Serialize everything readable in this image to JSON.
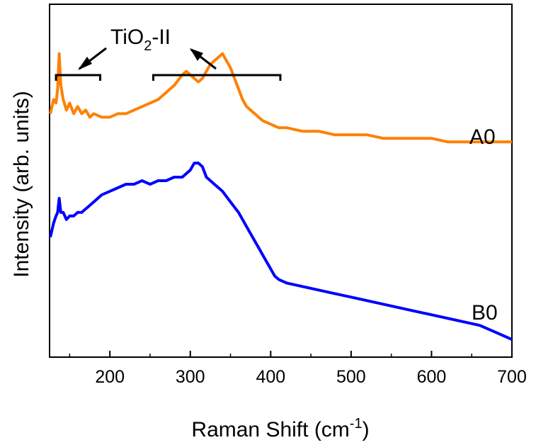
{
  "chart_data": {
    "type": "line",
    "xlabel": "Raman Shift (cm",
    "xlabel_sup": "-1",
    "xlabel_end": ")",
    "ylabel": "Intensity (arb. units)",
    "xlim": [
      125,
      700
    ],
    "xticks": [
      200,
      300,
      400,
      500,
      600,
      700
    ],
    "y_ticks_shown": false,
    "grid": false,
    "annotation": {
      "text_main": "TiO",
      "text_sub": "2",
      "text_end": "-II",
      "brackets": [
        {
          "from": 133,
          "to": 188
        },
        {
          "from": 254,
          "to": 412
        }
      ]
    },
    "series": [
      {
        "name": "A0",
        "color": "#ff8000",
        "x": [
          126,
          130,
          133,
          135,
          137,
          139,
          142,
          146,
          150,
          155,
          160,
          165,
          170,
          175,
          180,
          190,
          200,
          210,
          220,
          230,
          240,
          250,
          260,
          270,
          280,
          290,
          295,
          300,
          305,
          310,
          315,
          320,
          325,
          330,
          335,
          340,
          345,
          350,
          355,
          360,
          365,
          370,
          375,
          380,
          390,
          400,
          410,
          420,
          440,
          460,
          480,
          500,
          520,
          540,
          560,
          580,
          600,
          620,
          640,
          660,
          680,
          700
        ],
        "y": [
          0.69,
          0.73,
          0.72,
          0.76,
          0.86,
          0.77,
          0.73,
          0.7,
          0.72,
          0.69,
          0.71,
          0.69,
          0.7,
          0.68,
          0.69,
          0.68,
          0.68,
          0.69,
          0.69,
          0.7,
          0.71,
          0.72,
          0.73,
          0.75,
          0.77,
          0.8,
          0.81,
          0.8,
          0.79,
          0.78,
          0.79,
          0.81,
          0.83,
          0.84,
          0.85,
          0.86,
          0.84,
          0.82,
          0.79,
          0.76,
          0.73,
          0.71,
          0.7,
          0.69,
          0.67,
          0.66,
          0.65,
          0.65,
          0.64,
          0.64,
          0.63,
          0.63,
          0.63,
          0.62,
          0.62,
          0.62,
          0.62,
          0.61,
          0.61,
          0.61,
          0.61,
          0.61
        ]
      },
      {
        "name": "B0",
        "color": "#0000ff",
        "x": [
          126,
          130,
          133,
          135,
          137,
          139,
          142,
          146,
          150,
          155,
          160,
          165,
          170,
          175,
          180,
          190,
          200,
          210,
          220,
          230,
          240,
          250,
          260,
          270,
          280,
          290,
          300,
          305,
          310,
          315,
          320,
          330,
          340,
          350,
          360,
          370,
          375,
          380,
          385,
          390,
          395,
          400,
          405,
          410,
          420,
          440,
          460,
          480,
          500,
          520,
          540,
          560,
          580,
          600,
          620,
          640,
          660,
          680,
          700
        ],
        "y": [
          0.34,
          0.38,
          0.4,
          0.41,
          0.45,
          0.41,
          0.41,
          0.39,
          0.4,
          0.4,
          0.41,
          0.41,
          0.42,
          0.43,
          0.44,
          0.46,
          0.47,
          0.48,
          0.49,
          0.49,
          0.5,
          0.49,
          0.5,
          0.5,
          0.51,
          0.51,
          0.53,
          0.55,
          0.55,
          0.54,
          0.51,
          0.49,
          0.47,
          0.44,
          0.41,
          0.37,
          0.35,
          0.33,
          0.31,
          0.29,
          0.27,
          0.25,
          0.23,
          0.22,
          0.21,
          0.2,
          0.19,
          0.18,
          0.17,
          0.16,
          0.15,
          0.14,
          0.13,
          0.12,
          0.11,
          0.1,
          0.09,
          0.07,
          0.05
        ]
      }
    ]
  }
}
